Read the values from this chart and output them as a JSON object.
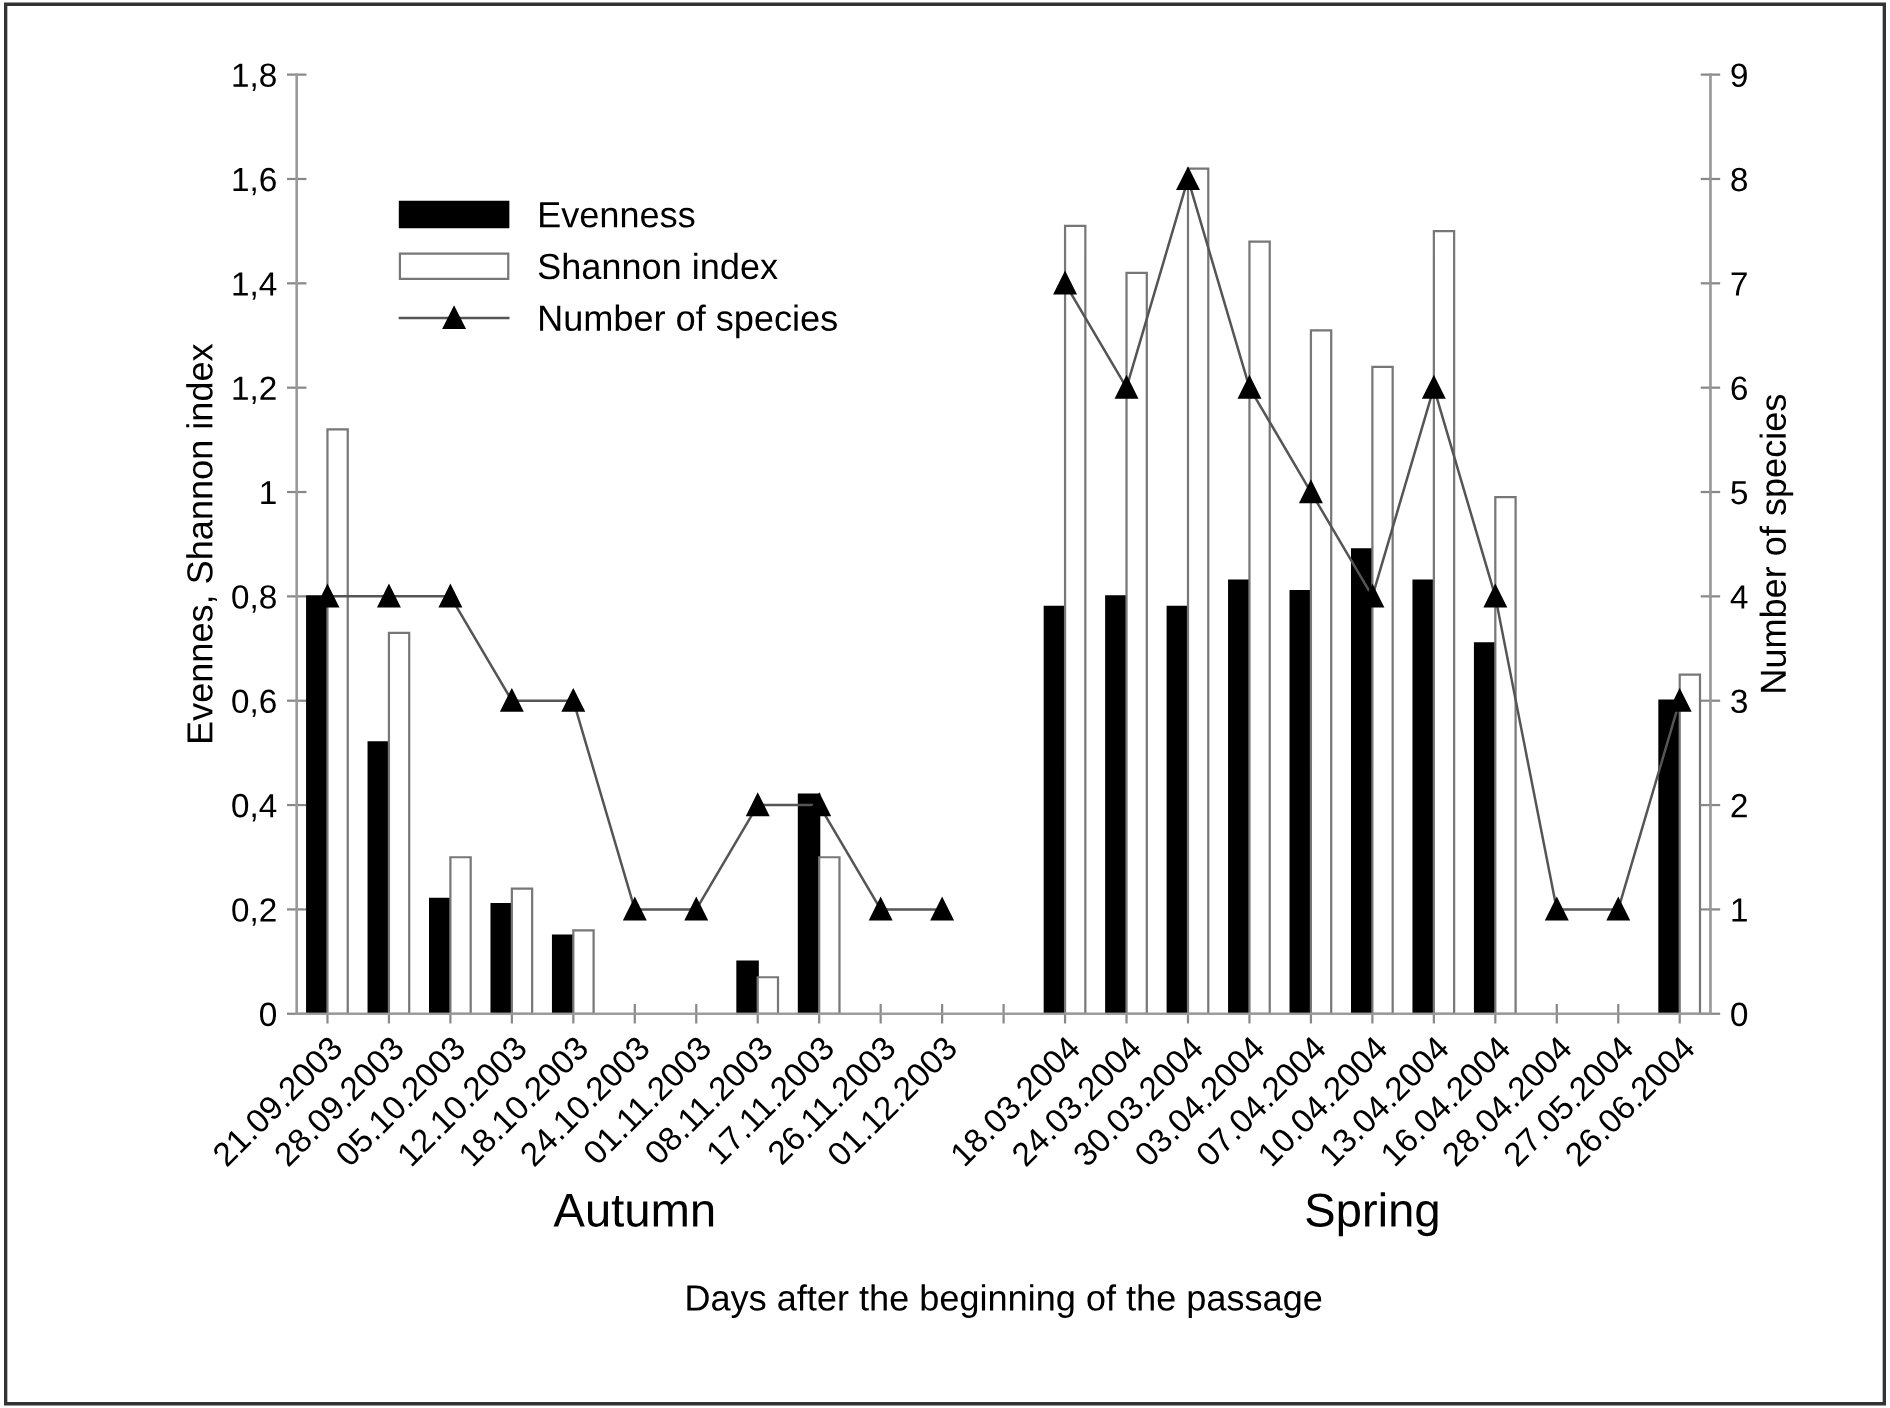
{
  "chart_data": {
    "type": "bar",
    "xlabel": "Days after the beginning of the passage",
    "ylabel": "Evennes, Shannon index",
    "y2label": "Number of species",
    "categories": [
      "21.09.2003",
      "28.09.2003",
      "05.10.2003",
      "12.10.2003",
      "18.10.2003",
      "24.10.2003",
      "01.11.2003",
      "08.11.2003",
      "17.11.2003",
      "26.11.2003",
      "01.12.2003",
      null,
      "18.03.2004",
      "24.03.2004",
      "30.03.2004",
      "03.04.2004",
      "07.04.2004",
      "10.04.2004",
      "13.04.2004",
      "16.04.2004",
      "28.04.2004",
      "27.05.2004",
      "26.06.2004"
    ],
    "series": [
      {
        "name": "Evenness",
        "color": "#000000",
        "values": [
          0.8,
          0.52,
          0.22,
          0.21,
          0.15,
          0,
          0,
          0.1,
          0.42,
          0,
          0,
          null,
          0.78,
          0.8,
          0.78,
          0.83,
          0.81,
          0.89,
          0.83,
          0.71,
          0,
          0,
          0.6
        ]
      },
      {
        "name": "Shannon index",
        "color": "#ffffff",
        "values": [
          1.12,
          0.73,
          0.3,
          0.24,
          0.16,
          0,
          0,
          0.07,
          0.3,
          0,
          0,
          null,
          1.51,
          1.42,
          1.62,
          1.48,
          1.31,
          1.24,
          1.5,
          0.99,
          0,
          0,
          0.65
        ]
      },
      {
        "name": "Number of species",
        "type": "line",
        "axis": "y2",
        "color": "#000000",
        "marker": "triangle",
        "values": [
          4,
          4,
          4,
          3,
          3,
          1,
          1,
          2,
          2,
          1,
          1,
          null,
          7,
          6,
          8,
          6,
          5,
          4,
          6,
          4,
          1,
          1,
          3
        ]
      }
    ],
    "ylim": [
      0,
      1.8
    ],
    "yticks": [
      0,
      {
        "value": 0.2,
        "label": "0,2"
      },
      {
        "value": 0.4,
        "label": "0,4"
      },
      {
        "value": 0.6,
        "label": "0,6"
      },
      {
        "value": 0.8,
        "label": "0,8"
      },
      1,
      {
        "value": 1.2,
        "label": "1,2"
      },
      {
        "value": 1.4,
        "label": "1,4"
      },
      {
        "value": 1.6,
        "label": "1,6"
      },
      {
        "value": 1.8,
        "label": "1,8"
      }
    ],
    "y2lim": [
      0,
      9
    ],
    "y2ticks": [
      0,
      1,
      2,
      3,
      4,
      5,
      6,
      7,
      8,
      9
    ],
    "legend": "top left",
    "grid": false,
    "annotations": [
      "Autumn",
      "Spring"
    ]
  }
}
